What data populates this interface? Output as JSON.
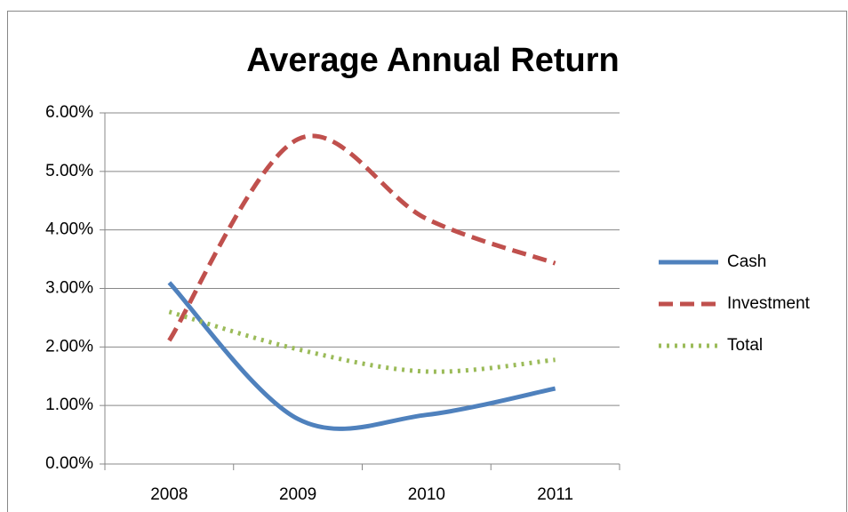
{
  "chart_data": {
    "type": "line",
    "title": "Average Annual Return",
    "categories": [
      "2008",
      "2009",
      "2010",
      "2011"
    ],
    "series": [
      {
        "name": "Cash",
        "color": "#4f81bd",
        "style": "solid",
        "values": [
          3.1,
          0.77,
          0.84,
          1.29
        ]
      },
      {
        "name": "Investment",
        "color": "#c0504d",
        "style": "dashed",
        "values": [
          2.11,
          5.55,
          4.19,
          3.43
        ]
      },
      {
        "name": "Total",
        "color": "#9bbb59",
        "style": "dotted",
        "values": [
          2.6,
          1.96,
          1.58,
          1.78
        ]
      }
    ],
    "ylim": [
      0,
      6
    ],
    "yticks": [
      {
        "value": 0,
        "label": "0.00%"
      },
      {
        "value": 1,
        "label": "1.00%"
      },
      {
        "value": 2,
        "label": "2.00%"
      },
      {
        "value": 3,
        "label": "3.00%"
      },
      {
        "value": 4,
        "label": "4.00%"
      },
      {
        "value": 5,
        "label": "5.00%"
      },
      {
        "value": 6,
        "label": "6.00%"
      }
    ],
    "grid": true,
    "smooth": true,
    "legend": "right"
  }
}
